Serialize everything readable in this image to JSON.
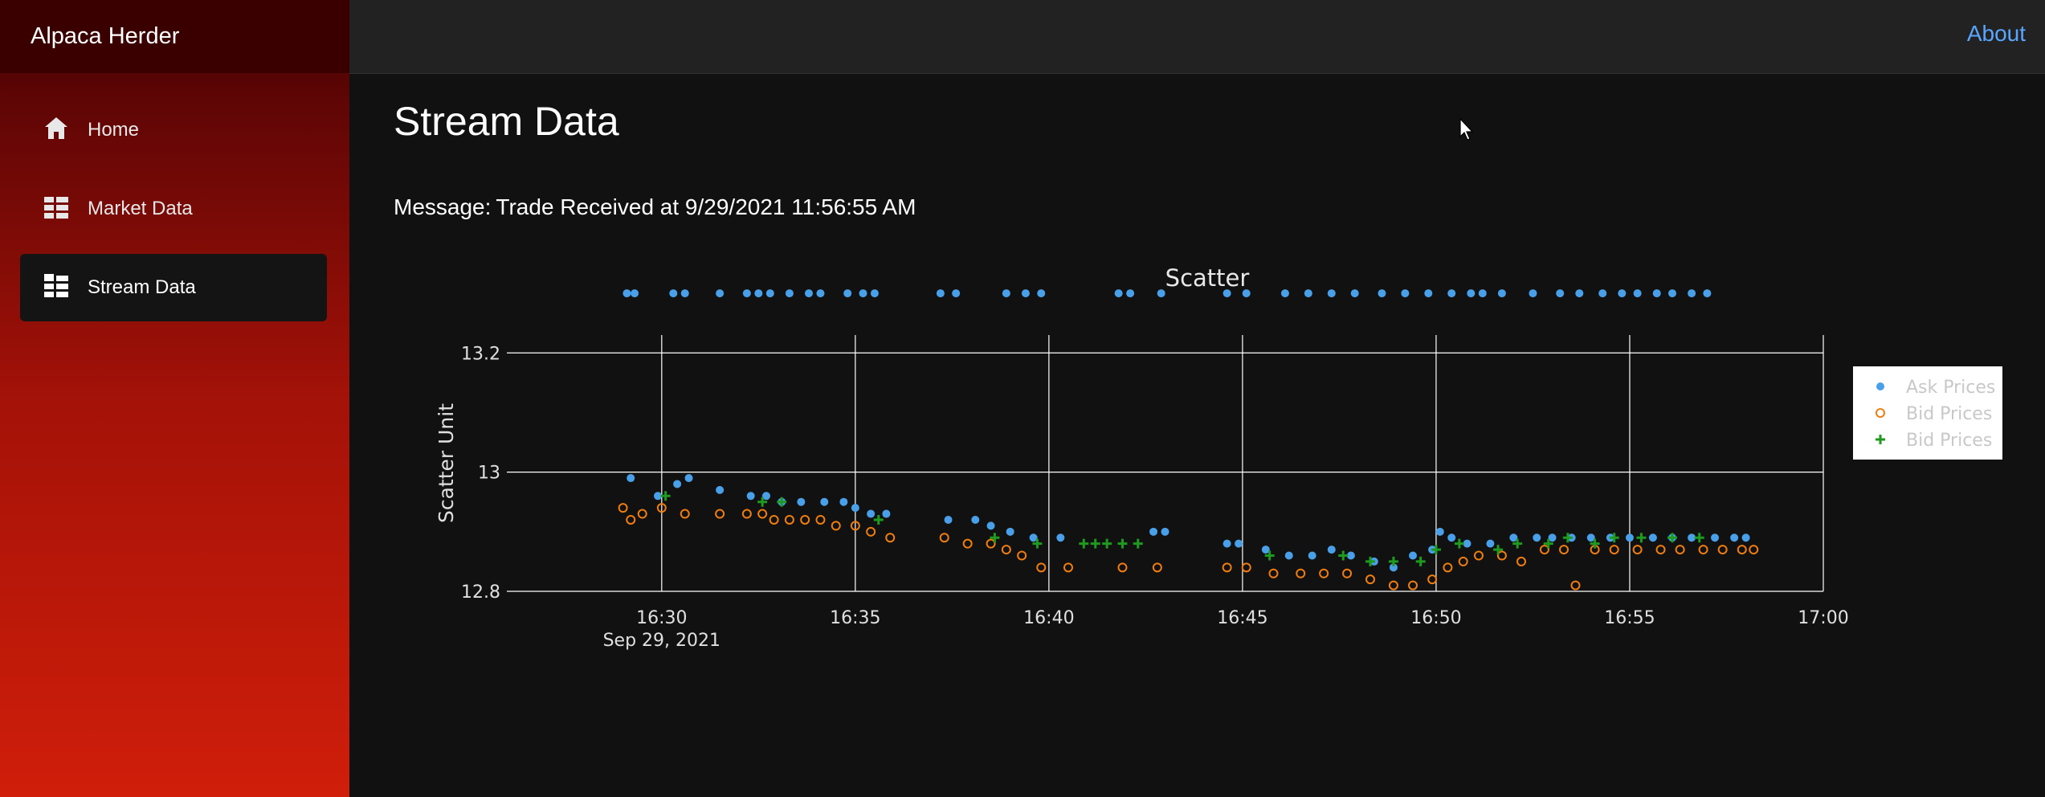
{
  "app": {
    "title": "Alpaca Herder"
  },
  "sidebar": {
    "items": [
      {
        "label": "Home",
        "icon": "home-icon",
        "active": false
      },
      {
        "label": "Market Data",
        "icon": "list-icon",
        "active": false
      },
      {
        "label": "Stream Data",
        "icon": "list-icon",
        "active": true
      }
    ]
  },
  "topbar": {
    "about_label": "About"
  },
  "page": {
    "title": "Stream Data",
    "message_label": "Message:",
    "message_value": "Trade Received at 9/29/2021 11:56:55 AM"
  },
  "colors": {
    "accent": "#5aa6ff",
    "ask": "#4aa0e8",
    "bid": "#f07d0f",
    "trade": "#1e9a1e"
  },
  "chart_data": {
    "type": "scatter",
    "title": "Scatter",
    "xlabel": "",
    "ylabel": "Scatter Unit",
    "xlim": [
      "16:26",
      "17:00"
    ],
    "ylim": [
      12.8,
      13.23
    ],
    "x_ticks": [
      "16:30",
      "16:35",
      "16:40",
      "16:45",
      "16:50",
      "16:55",
      "17:00"
    ],
    "x_tick_sublabel": "Sep 29, 2021",
    "y_ticks": [
      "12.8",
      "13",
      "13.2"
    ],
    "grid": true,
    "legend_position": "top-right",
    "series": [
      {
        "name": "Ask Prices",
        "marker": "filled-circle",
        "x": [
          "16:29.1",
          "16:29.3",
          "16:30.3",
          "16:30.6",
          "16:31.5",
          "16:32.2",
          "16:32.5",
          "16:32.8",
          "16:33.3",
          "16:33.8",
          "16:34.1",
          "16:34.8",
          "16:35.2",
          "16:35.5",
          "16:37.2",
          "16:37.6",
          "16:38.9",
          "16:39.4",
          "16:39.8",
          "16:41.8",
          "16:42.1",
          "16:42.9",
          "16:44.6",
          "16:45.1",
          "16:46.1",
          "16:46.7",
          "16:47.3",
          "16:47.9",
          "16:48.6",
          "16:49.2",
          "16:49.8",
          "16:50.4",
          "16:50.9",
          "16:51.2",
          "16:51.7",
          "16:52.5",
          "16:53.2",
          "16:53.7",
          "16:54.3",
          "16:54.8",
          "16:55.2",
          "16:55.7",
          "16:56.1",
          "16:56.6",
          "16:57.0",
          "16:29.2",
          "16:29.9",
          "16:30.4",
          "16:30.7",
          "16:31.5",
          "16:32.3",
          "16:32.7",
          "16:33.1",
          "16:33.6",
          "16:34.2",
          "16:34.7",
          "16:35.0",
          "16:35.4",
          "16:35.8",
          "16:37.4",
          "16:38.1",
          "16:38.5",
          "16:39.0",
          "16:39.6",
          "16:40.3",
          "16:42.7",
          "16:43.0",
          "16:44.6",
          "16:44.9",
          "16:45.6",
          "16:46.2",
          "16:46.8",
          "16:47.3",
          "16:47.8",
          "16:48.4",
          "16:48.9",
          "16:49.4",
          "16:49.9",
          "16:50.1",
          "16:50.4",
          "16:50.8",
          "16:51.4",
          "16:52.0",
          "16:52.6",
          "16:53.0",
          "16:53.5",
          "16:54.0",
          "16:54.5",
          "16:55.0",
          "16:55.6",
          "16:56.1",
          "16:56.6",
          "16:57.2",
          "16:57.7",
          "16:58.0"
        ],
        "y": [
          13.3,
          13.3,
          13.3,
          13.3,
          13.3,
          13.3,
          13.3,
          13.3,
          13.3,
          13.3,
          13.3,
          13.3,
          13.3,
          13.3,
          13.3,
          13.3,
          13.3,
          13.3,
          13.3,
          13.3,
          13.3,
          13.3,
          13.3,
          13.3,
          13.3,
          13.3,
          13.3,
          13.3,
          13.3,
          13.3,
          13.3,
          13.3,
          13.3,
          13.3,
          13.3,
          13.3,
          13.3,
          13.3,
          13.3,
          13.3,
          13.3,
          13.3,
          13.3,
          13.3,
          13.3,
          12.99,
          12.96,
          12.98,
          12.99,
          12.97,
          12.96,
          12.96,
          12.95,
          12.95,
          12.95,
          12.95,
          12.94,
          12.93,
          12.93,
          12.92,
          12.92,
          12.91,
          12.9,
          12.89,
          12.89,
          12.9,
          12.9,
          12.88,
          12.88,
          12.87,
          12.86,
          12.86,
          12.87,
          12.86,
          12.85,
          12.84,
          12.86,
          12.87,
          12.9,
          12.89,
          12.88,
          12.88,
          12.89,
          12.89,
          12.89,
          12.89,
          12.89,
          12.89,
          12.89,
          12.89,
          12.89,
          12.89,
          12.89,
          12.89,
          12.89
        ]
      },
      {
        "name": "Bid Prices",
        "marker": "open-circle",
        "x": [
          "16:29.0",
          "16:29.2",
          "16:29.5",
          "16:30.0",
          "16:30.6",
          "16:31.5",
          "16:32.2",
          "16:32.6",
          "16:32.9",
          "16:33.3",
          "16:33.7",
          "16:34.1",
          "16:34.5",
          "16:35.0",
          "16:35.4",
          "16:35.9",
          "16:37.3",
          "16:37.9",
          "16:38.5",
          "16:38.9",
          "16:39.3",
          "16:39.8",
          "16:40.5",
          "16:41.9",
          "16:42.8",
          "16:44.6",
          "16:45.1",
          "16:45.8",
          "16:46.5",
          "16:47.1",
          "16:47.7",
          "16:48.3",
          "16:48.9",
          "16:49.4",
          "16:49.9",
          "16:50.3",
          "16:50.7",
          "16:51.1",
          "16:51.7",
          "16:52.2",
          "16:52.8",
          "16:53.3",
          "16:53.6",
          "16:54.1",
          "16:54.6",
          "16:55.2",
          "16:55.8",
          "16:56.3",
          "16:56.9",
          "16:57.4",
          "16:57.9",
          "16:58.2"
        ],
        "y": [
          12.94,
          12.92,
          12.93,
          12.94,
          12.93,
          12.93,
          12.93,
          12.93,
          12.92,
          12.92,
          12.92,
          12.92,
          12.91,
          12.91,
          12.9,
          12.89,
          12.89,
          12.88,
          12.88,
          12.87,
          12.86,
          12.84,
          12.84,
          12.84,
          12.84,
          12.84,
          12.84,
          12.83,
          12.83,
          12.83,
          12.83,
          12.82,
          12.81,
          12.81,
          12.82,
          12.84,
          12.85,
          12.86,
          12.86,
          12.85,
          12.87,
          12.87,
          12.81,
          12.87,
          12.87,
          12.87,
          12.87,
          12.87,
          12.87,
          12.87,
          12.87,
          12.87
        ]
      },
      {
        "name": "Bid Prices",
        "marker": "plus",
        "x": [
          "16:30.1",
          "16:32.6",
          "16:33.1",
          "16:35.6",
          "16:38.6",
          "16:39.7",
          "16:40.9",
          "16:41.2",
          "16:41.5",
          "16:41.9",
          "16:42.3",
          "16:45.7",
          "16:47.6",
          "16:48.3",
          "16:48.9",
          "16:49.6",
          "16:50.0",
          "16:50.6",
          "16:51.6",
          "16:52.1",
          "16:52.9",
          "16:53.4",
          "16:54.1",
          "16:54.6",
          "16:55.3",
          "16:56.1",
          "16:56.8"
        ],
        "y": [
          12.96,
          12.95,
          12.95,
          12.92,
          12.89,
          12.88,
          12.88,
          12.88,
          12.88,
          12.88,
          12.88,
          12.86,
          12.86,
          12.85,
          12.85,
          12.85,
          12.87,
          12.88,
          12.87,
          12.88,
          12.88,
          12.89,
          12.88,
          12.89,
          12.89,
          12.89,
          12.89
        ]
      }
    ]
  }
}
